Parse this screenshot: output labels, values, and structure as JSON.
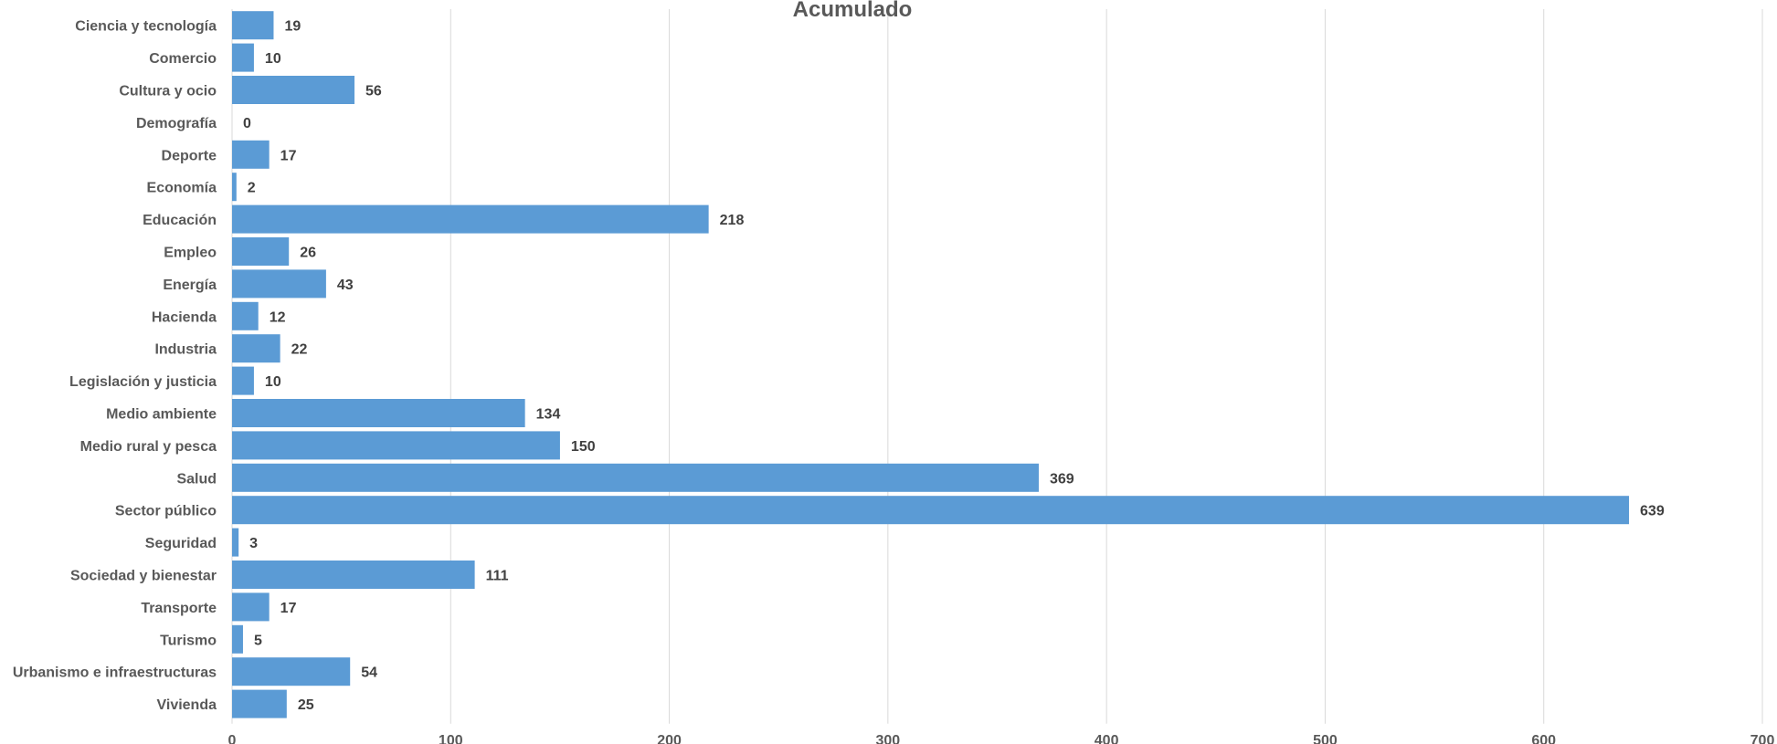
{
  "chart_data": {
    "type": "bar",
    "orientation": "horizontal",
    "title": "Acumulado",
    "xlabel": "",
    "ylabel": "",
    "xlim": [
      0,
      700
    ],
    "x_ticks": [
      0,
      100,
      200,
      300,
      400,
      500,
      600,
      700
    ],
    "grid": true,
    "legend": "none",
    "bar_color": "#5B9BD5",
    "categories": [
      "Ciencia y tecnología",
      "Comercio",
      "Cultura y ocio",
      "Demografía",
      "Deporte",
      "Economía",
      "Educación",
      "Empleo",
      "Energía",
      "Hacienda",
      "Industria",
      "Legislación y justicia",
      "Medio ambiente",
      "Medio rural y pesca",
      "Salud",
      "Sector público",
      "Seguridad",
      "Sociedad y bienestar",
      "Transporte",
      "Turismo",
      "Urbanismo e infraestructuras",
      "Vivienda"
    ],
    "values": [
      19,
      10,
      56,
      0,
      17,
      2,
      218,
      26,
      43,
      12,
      22,
      10,
      134,
      150,
      369,
      639,
      3,
      111,
      17,
      5,
      54,
      25
    ]
  }
}
